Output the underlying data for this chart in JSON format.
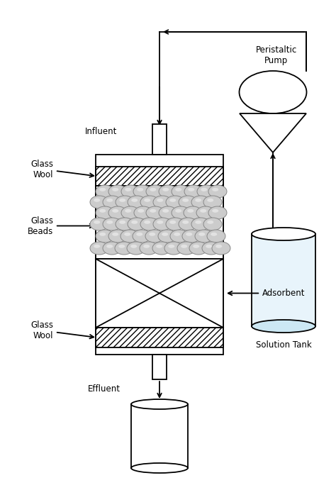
{
  "bg_color": "#ffffff",
  "line_color": "#000000",
  "bead_color": "#cccccc",
  "bead_edge": "#888888",
  "labels": {
    "influent": "Influent",
    "effluent": "Effluent",
    "glass_wool_top": "Glass\nWool",
    "glass_wool_bot": "Glass\nWool",
    "glass_beads": "Glass\nBeads",
    "adsorbent": "Adsorbent",
    "solution_tank": "Solution Tank",
    "peristaltic_pump": "Peristaltic\nPump"
  },
  "figsize": [
    4.74,
    6.91
  ],
  "dpi": 100
}
